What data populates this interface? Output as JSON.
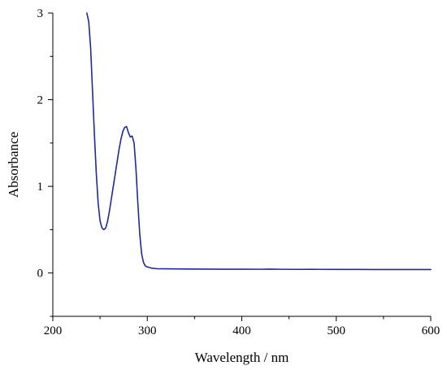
{
  "chart_data": {
    "type": "line",
    "title": "",
    "xlabel": "Wavelength / nm",
    "ylabel": "Absorbance",
    "xlim": [
      200,
      600
    ],
    "ylim": [
      -0.5,
      3
    ],
    "x_ticks": [
      200,
      300,
      400,
      500,
      600
    ],
    "y_ticks": [
      0,
      1,
      2,
      3
    ],
    "grid": false,
    "legend": "none",
    "series": [
      {
        "color": "#1f2a9c",
        "x": [
          236,
          238,
          240,
          242,
          244,
          246,
          248,
          250,
          252,
          254,
          256,
          258,
          260,
          262,
          264,
          266,
          268,
          270,
          272,
          274,
          276,
          278,
          280,
          282,
          284,
          286,
          288,
          290,
          292,
          294,
          296,
          298,
          300,
          305,
          310,
          320,
          340,
          360,
          380,
          400,
          420,
          430,
          440,
          460,
          475,
          480,
          500,
          520,
          540,
          560,
          580,
          600
        ],
        "y": [
          3.0,
          2.9,
          2.6,
          2.1,
          1.6,
          1.15,
          0.8,
          0.6,
          0.52,
          0.5,
          0.52,
          0.6,
          0.72,
          0.86,
          1.0,
          1.14,
          1.28,
          1.42,
          1.54,
          1.63,
          1.68,
          1.69,
          1.62,
          1.57,
          1.58,
          1.5,
          1.2,
          0.8,
          0.45,
          0.22,
          0.12,
          0.08,
          0.07,
          0.055,
          0.05,
          0.048,
          0.046,
          0.045,
          0.044,
          0.044,
          0.043,
          0.045,
          0.043,
          0.042,
          0.043,
          0.042,
          0.041,
          0.041,
          0.04,
          0.04,
          0.04,
          0.04
        ]
      }
    ]
  }
}
